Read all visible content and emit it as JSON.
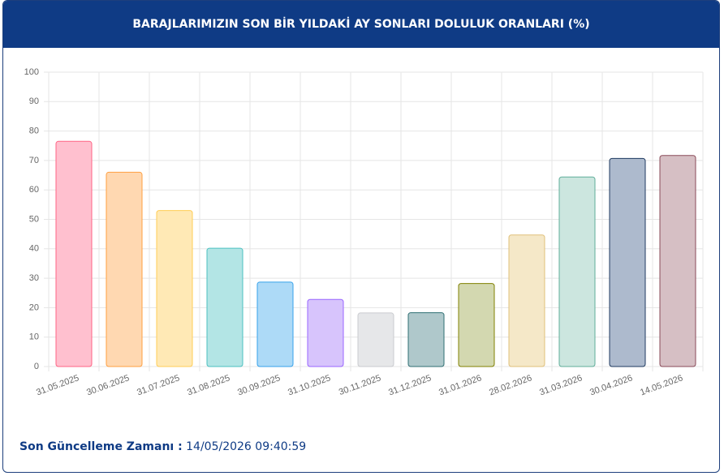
{
  "header": {
    "title": "BARAJLARIMIZIN SON BİR YILDAKİ AY SONLARI DOLULUK ORANLARI (%)"
  },
  "chart_data": {
    "type": "bar",
    "categories": [
      "31.05.2025",
      "30.06.2025",
      "31.07.2025",
      "31.08.2025",
      "30.09.2025",
      "31.10.2025",
      "30.11.2025",
      "31.12.2025",
      "31.01.2026",
      "28.02.2026",
      "31.03.2026",
      "30.04.2026",
      "14.05.2026"
    ],
    "values": [
      76.5,
      66,
      53,
      40.2,
      28.7,
      22.8,
      18.2,
      18.3,
      28.2,
      44.7,
      64.4,
      70.7,
      71.7
    ],
    "colors": [
      "#ffc0cf",
      "#ffd8b1",
      "#ffe9b5",
      "#b3e5e5",
      "#addaf7",
      "#d7c4fc",
      "#e6e7e9",
      "#afc8cb",
      "#d3d8b0",
      "#f5e8c8",
      "#cce6df",
      "#adbacd",
      "#d6bfc4"
    ],
    "border_colors": [
      "#ff6384",
      "#ff9f40",
      "#ffcd56",
      "#4bc0c0",
      "#36a2eb",
      "#9966ff",
      "#c9cbcf",
      "#2f6f73",
      "#808000",
      "#e0c07a",
      "#5fae9a",
      "#1f3a60",
      "#8a4a58"
    ],
    "ylim": [
      0,
      100
    ],
    "yticks": [
      0,
      10,
      20,
      30,
      40,
      50,
      60,
      70,
      80,
      90,
      100
    ],
    "grid": true
  },
  "footer": {
    "label": "Son Güncelleme Zamanı :",
    "value": "14/05/2026 09:40:59"
  }
}
